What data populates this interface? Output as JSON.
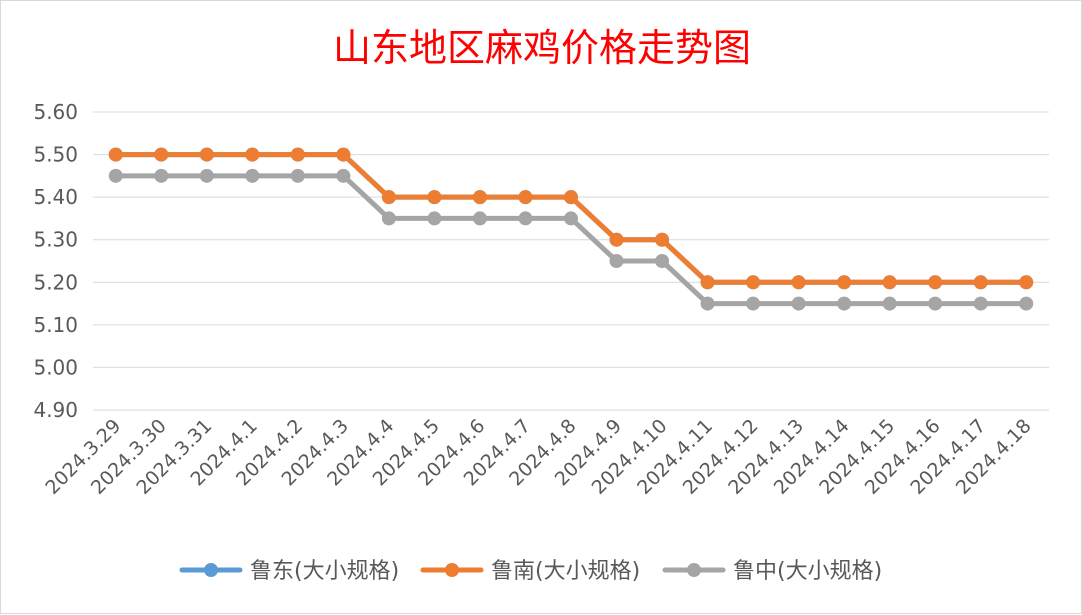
{
  "chart_data": {
    "type": "line",
    "title": "山东地区麻鸡价格走势图",
    "xlabel": "",
    "ylabel": "",
    "categories": [
      "2024.3.29",
      "2024.3.30",
      "2024.3.31",
      "2024.4.1",
      "2024.4.2",
      "2024.4.3",
      "2024.4.4",
      "2024.4.5",
      "2024.4.6",
      "2024.4.7",
      "2024.4.8",
      "2024.4.9",
      "2024.4.10",
      "2024.4.11",
      "2024.4.12",
      "2024.4.13",
      "2024.4.14",
      "2024.4.15",
      "2024.4.16",
      "2024.4.17",
      "2024.4.18"
    ],
    "ylim": [
      4.9,
      5.6
    ],
    "yticks": [
      "4.90",
      "5.00",
      "5.10",
      "5.20",
      "5.30",
      "5.40",
      "5.50",
      "5.60"
    ],
    "grid": true,
    "legend_position": "bottom",
    "series": [
      {
        "name": "鲁东(大小规格)",
        "color": "#5b9bd5",
        "values": [
          5.5,
          5.5,
          5.5,
          5.5,
          5.5,
          5.5,
          5.4,
          5.4,
          5.4,
          5.4,
          5.4,
          5.3,
          5.3,
          5.2,
          5.2,
          5.2,
          5.2,
          5.2,
          5.2,
          5.2,
          5.2
        ]
      },
      {
        "name": "鲁南(大小规格)",
        "color": "#ed7d31",
        "values": [
          5.5,
          5.5,
          5.5,
          5.5,
          5.5,
          5.5,
          5.4,
          5.4,
          5.4,
          5.4,
          5.4,
          5.3,
          5.3,
          5.2,
          5.2,
          5.2,
          5.2,
          5.2,
          5.2,
          5.2,
          5.2
        ]
      },
      {
        "name": "鲁中(大小规格)",
        "color": "#a5a5a5",
        "values": [
          5.45,
          5.45,
          5.45,
          5.45,
          5.45,
          5.45,
          5.35,
          5.35,
          5.35,
          5.35,
          5.35,
          5.25,
          5.25,
          5.15,
          5.15,
          5.15,
          5.15,
          5.15,
          5.15,
          5.15,
          5.15
        ]
      }
    ]
  }
}
